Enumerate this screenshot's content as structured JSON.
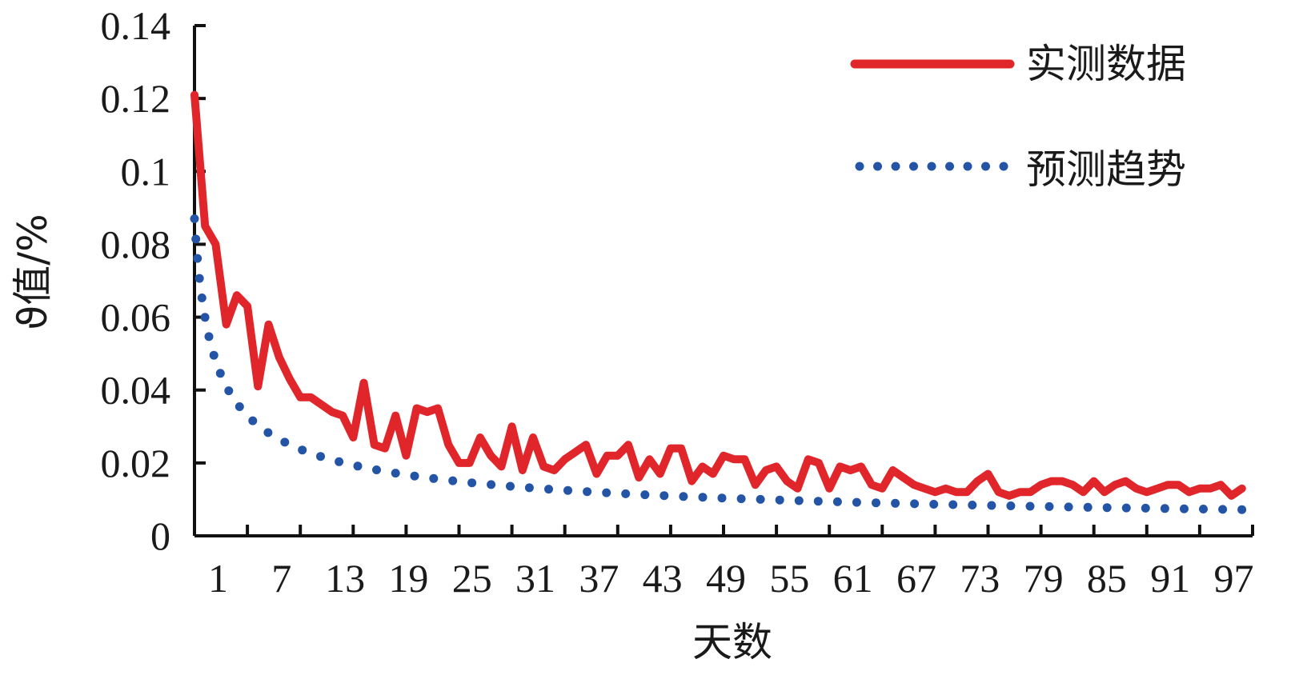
{
  "chart_data": {
    "type": "line",
    "xlabel": "天数",
    "ylabel": "ϑ值/%",
    "ylim": [
      0,
      0.14
    ],
    "yticks": [
      "0",
      "0.02",
      "0.04",
      "0.06",
      "0.08",
      "0.1",
      "0.12",
      "0.14"
    ],
    "xticks": [
      "1",
      "7",
      "13",
      "19",
      "25",
      "31",
      "37",
      "43",
      "49",
      "55",
      "61",
      "67",
      "73",
      "79",
      "85",
      "91",
      "97"
    ],
    "xlim": [
      -1,
      99
    ],
    "legend_position": "top-right",
    "grid": false,
    "series": [
      {
        "name": "实测数据",
        "style": "solid",
        "color": "#e0262a",
        "x": [
          -1,
          0,
          1,
          2,
          3,
          4,
          5,
          6,
          7,
          8,
          9,
          10,
          11,
          12,
          13,
          14,
          15,
          16,
          17,
          18,
          19,
          20,
          21,
          22,
          23,
          24,
          25,
          26,
          27,
          28,
          29,
          30,
          31,
          32,
          33,
          34,
          35,
          36,
          37,
          38,
          39,
          40,
          41,
          42,
          43,
          44,
          45,
          46,
          47,
          48,
          49,
          50,
          51,
          52,
          53,
          54,
          55,
          56,
          57,
          58,
          59,
          60,
          61,
          62,
          63,
          64,
          65,
          66,
          67,
          68,
          69,
          70,
          71,
          72,
          73,
          74,
          75,
          76,
          77,
          78,
          79,
          80,
          81,
          82,
          83,
          84,
          85,
          86,
          87,
          88,
          89,
          90,
          91,
          92,
          93,
          94,
          95,
          96,
          97,
          98
        ],
        "values": [
          0.121,
          0.085,
          0.08,
          0.058,
          0.066,
          0.063,
          0.041,
          0.058,
          0.049,
          0.043,
          0.038,
          0.038,
          0.036,
          0.034,
          0.033,
          0.027,
          0.042,
          0.025,
          0.024,
          0.033,
          0.022,
          0.035,
          0.034,
          0.035,
          0.025,
          0.02,
          0.02,
          0.027,
          0.022,
          0.019,
          0.03,
          0.018,
          0.027,
          0.019,
          0.018,
          0.021,
          0.023,
          0.025,
          0.017,
          0.022,
          0.022,
          0.025,
          0.016,
          0.021,
          0.017,
          0.024,
          0.024,
          0.015,
          0.019,
          0.017,
          0.022,
          0.021,
          0.021,
          0.014,
          0.018,
          0.019,
          0.015,
          0.013,
          0.021,
          0.02,
          0.013,
          0.019,
          0.018,
          0.019,
          0.014,
          0.013,
          0.018,
          0.016,
          0.014,
          0.013,
          0.012,
          0.013,
          0.012,
          0.012,
          0.015,
          0.017,
          0.012,
          0.011,
          0.012,
          0.012,
          0.014,
          0.015,
          0.015,
          0.014,
          0.012,
          0.015,
          0.012,
          0.014,
          0.015,
          0.013,
          0.012,
          0.013,
          0.014,
          0.014,
          0.012,
          0.013,
          0.013,
          0.014,
          0.011,
          0.013
        ]
      },
      {
        "name": "预测趋势",
        "style": "dotted",
        "color": "#2454a6",
        "function": "power",
        "start_x": -1,
        "end_x": 98,
        "start_value": 0.087,
        "end_value": 0.0072
      }
    ]
  }
}
